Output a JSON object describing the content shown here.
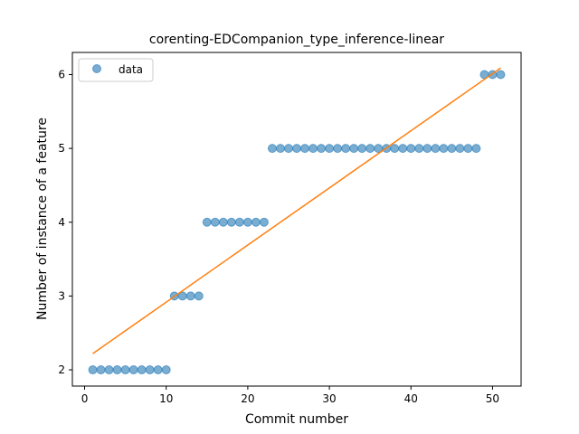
{
  "chart_data": {
    "type": "scatter",
    "title": "corenting-EDCompanion_type_inference-linear",
    "xlabel": "Commit number",
    "ylabel": "Number of instance of a feature",
    "xlim": [
      -1.5,
      53.5
    ],
    "ylim": [
      1.78,
      6.3
    ],
    "x_ticks": [
      0,
      10,
      20,
      30,
      40,
      50
    ],
    "y_ticks": [
      2,
      3,
      4,
      5,
      6
    ],
    "grid": false,
    "legend": {
      "position": "top-left",
      "entries": [
        "data"
      ]
    },
    "series": [
      {
        "name": "data",
        "kind": "scatter",
        "color": "#1f77b4",
        "x": [
          1,
          2,
          3,
          4,
          5,
          6,
          7,
          8,
          9,
          10,
          11,
          12,
          13,
          14,
          15,
          16,
          17,
          18,
          19,
          20,
          21,
          22,
          23,
          24,
          25,
          26,
          27,
          28,
          29,
          30,
          31,
          32,
          33,
          34,
          35,
          36,
          37,
          38,
          39,
          40,
          41,
          42,
          43,
          44,
          45,
          46,
          47,
          48,
          49,
          50,
          51
        ],
        "y": [
          2,
          2,
          2,
          2,
          2,
          2,
          2,
          2,
          2,
          2,
          3,
          3,
          3,
          3,
          4,
          4,
          4,
          4,
          4,
          4,
          4,
          4,
          5,
          5,
          5,
          5,
          5,
          5,
          5,
          5,
          5,
          5,
          5,
          5,
          5,
          5,
          5,
          5,
          5,
          5,
          5,
          5,
          5,
          5,
          5,
          5,
          5,
          5,
          6,
          6,
          6
        ]
      },
      {
        "kind": "line",
        "color": "#ff7f0e",
        "x": [
          1,
          51
        ],
        "y": [
          2.22,
          6.09
        ]
      }
    ]
  }
}
